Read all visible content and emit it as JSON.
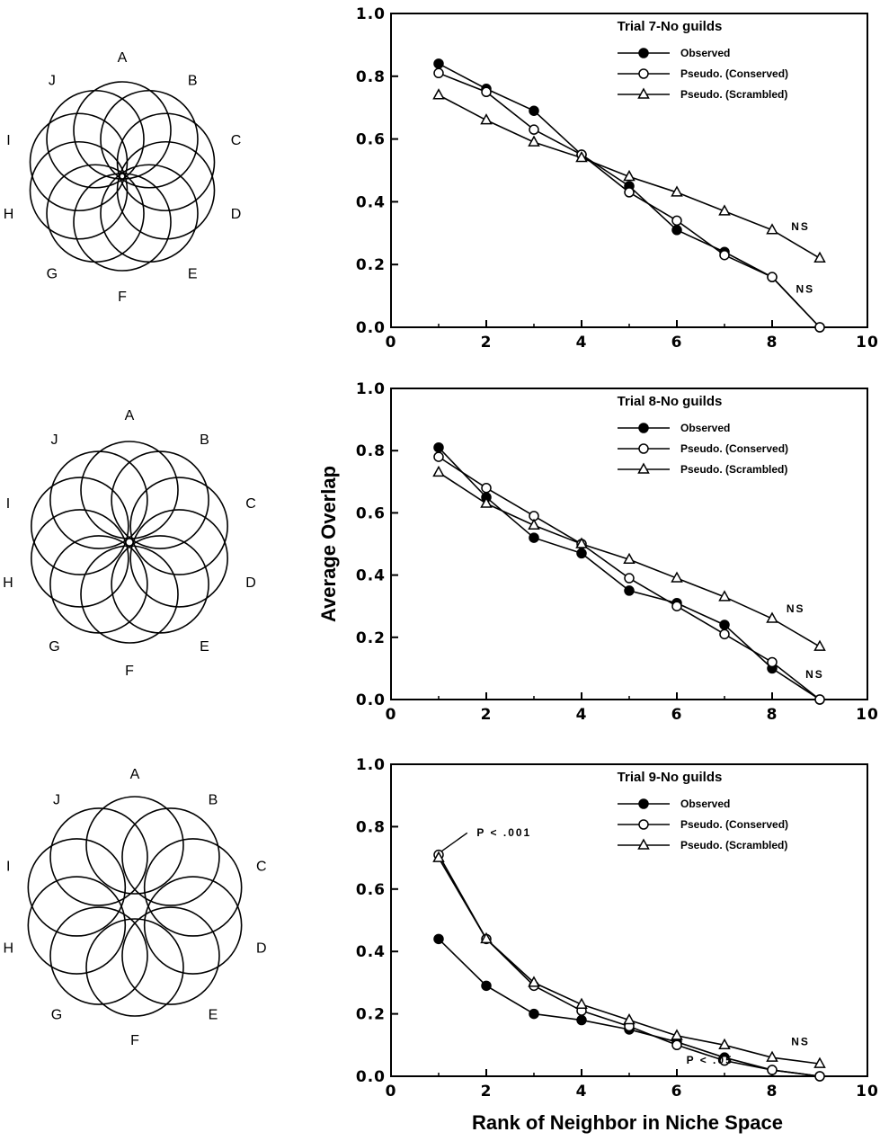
{
  "figure": {
    "ylabel": "Average Overlap",
    "xlabel": "Rank of Neighbor in Niche Space"
  },
  "diagrams": [
    {
      "labels": [
        "A",
        "B",
        "C",
        "D",
        "E",
        "F",
        "G",
        "H",
        "I",
        "J"
      ]
    },
    {
      "labels": [
        "A",
        "B",
        "C",
        "D",
        "E",
        "F",
        "G",
        "H",
        "I",
        "J"
      ]
    },
    {
      "labels": [
        "A",
        "B",
        "C",
        "D",
        "E",
        "F",
        "G",
        "H",
        "I",
        "J"
      ]
    }
  ],
  "chart_data": [
    {
      "type": "line",
      "title": "Trial 7-No guilds",
      "xlim": [
        0,
        10
      ],
      "ylim": [
        0,
        1.0
      ],
      "xticks": [
        "0",
        "2",
        "4",
        "6",
        "8",
        "10"
      ],
      "yticks": [
        "0.0",
        "0.2",
        "0.4",
        "0.6",
        "0.8",
        "1.0"
      ],
      "x": [
        1,
        2,
        3,
        4,
        5,
        6,
        7,
        8,
        9
      ],
      "series": [
        {
          "name": "Observed",
          "marker": "filled-circle",
          "values": [
            0.84,
            0.76,
            0.69,
            0.55,
            0.45,
            0.31,
            0.24,
            0.16,
            0.0
          ]
        },
        {
          "name": "Pseudo. (Conserved)",
          "marker": "open-circle",
          "values": [
            0.81,
            0.75,
            0.63,
            0.55,
            0.43,
            0.34,
            0.23,
            0.16,
            0.0
          ]
        },
        {
          "name": "Pseudo. (Scrambled)",
          "marker": "open-triangle",
          "values": [
            0.74,
            0.66,
            0.59,
            0.54,
            0.48,
            0.43,
            0.37,
            0.31,
            0.22
          ]
        }
      ],
      "annotations": [
        {
          "text": "NS",
          "x": 8.4,
          "y": 0.31
        },
        {
          "text": "NS",
          "x": 8.5,
          "y": 0.11
        }
      ]
    },
    {
      "type": "line",
      "title": "Trial 8-No guilds",
      "xlim": [
        0,
        10
      ],
      "ylim": [
        0,
        1.0
      ],
      "xticks": [
        "0",
        "2",
        "4",
        "6",
        "8",
        "10"
      ],
      "yticks": [
        "0.0",
        "0.2",
        "0.4",
        "0.6",
        "0.8",
        "1.0"
      ],
      "x": [
        1,
        2,
        3,
        4,
        5,
        6,
        7,
        8,
        9
      ],
      "series": [
        {
          "name": "Observed",
          "marker": "filled-circle",
          "values": [
            0.81,
            0.65,
            0.52,
            0.47,
            0.35,
            0.31,
            0.24,
            0.1,
            0.0
          ]
        },
        {
          "name": "Pseudo. (Conserved)",
          "marker": "open-circle",
          "values": [
            0.78,
            0.68,
            0.59,
            0.5,
            0.39,
            0.3,
            0.21,
            0.12,
            0.0
          ]
        },
        {
          "name": "Pseudo. (Scrambled)",
          "marker": "open-triangle",
          "values": [
            0.73,
            0.63,
            0.56,
            0.5,
            0.45,
            0.39,
            0.33,
            0.26,
            0.17
          ]
        }
      ],
      "annotations": [
        {
          "text": "NS",
          "x": 8.3,
          "y": 0.28
        },
        {
          "text": "NS",
          "x": 8.7,
          "y": 0.07
        }
      ]
    },
    {
      "type": "line",
      "title": "Trial 9-No guilds",
      "xlim": [
        0,
        10
      ],
      "ylim": [
        0,
        1.0
      ],
      "xticks": [
        "0",
        "2",
        "4",
        "6",
        "8",
        "10"
      ],
      "yticks": [
        "0.0",
        "0.2",
        "0.4",
        "0.6",
        "0.8",
        "1.0"
      ],
      "x": [
        1,
        2,
        3,
        4,
        5,
        6,
        7,
        8,
        9
      ],
      "series": [
        {
          "name": "Observed",
          "marker": "filled-circle",
          "values": [
            0.44,
            0.29,
            0.2,
            0.18,
            0.15,
            0.11,
            0.06,
            0.02,
            0.0
          ]
        },
        {
          "name": "Pseudo. (Conserved)",
          "marker": "open-circle",
          "values": [
            0.71,
            0.44,
            0.29,
            0.21,
            0.16,
            0.1,
            0.05,
            0.02,
            0.0
          ]
        },
        {
          "name": "Pseudo. (Scrambled)",
          "marker": "open-triangle",
          "values": [
            0.7,
            0.44,
            0.3,
            0.23,
            0.18,
            0.13,
            0.1,
            0.06,
            0.04
          ]
        }
      ],
      "annotations": [
        {
          "text": "P < .001",
          "x": 1.8,
          "y": 0.77
        },
        {
          "text": "P < .05",
          "x": 6.2,
          "y": 0.04
        },
        {
          "text": "NS",
          "x": 8.4,
          "y": 0.1
        }
      ]
    }
  ]
}
